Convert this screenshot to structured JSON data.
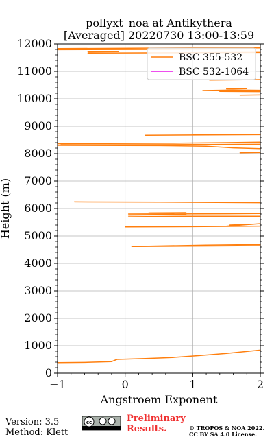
{
  "chart_data": {
    "type": "line",
    "title": "pollyxt_noa at Antikythera",
    "subtitle": "[Averaged] 20220730 13:00-13:59",
    "xlabel": "Angstroem Exponent",
    "ylabel": "Height (m)",
    "xlim": [
      -1,
      2
    ],
    "ylim": [
      0,
      12000
    ],
    "x_ticks": [
      -1,
      0,
      1,
      2
    ],
    "y_ticks": [
      0,
      1000,
      2000,
      3000,
      4000,
      5000,
      6000,
      7000,
      8000,
      9000,
      10000,
      11000,
      12000
    ],
    "grid": true,
    "legend_position": "upper-right",
    "series": [
      {
        "name": "BSC 355-532",
        "color": "#ff7f0e",
        "segments": [
          [
            [
              -1.0,
              380
            ],
            [
              -0.6,
              390
            ],
            [
              -0.2,
              420
            ],
            [
              -0.12,
              500
            ],
            [
              0.3,
              530
            ],
            [
              0.7,
              570
            ],
            [
              1.1,
              640
            ],
            [
              1.5,
              720
            ],
            [
              2.0,
              840
            ]
          ],
          [
            [
              0.1,
              4620
            ],
            [
              1.5,
              4640
            ],
            [
              2.0,
              4650
            ]
          ],
          [
            [
              0.1,
              4620
            ],
            [
              1.2,
              4670
            ],
            [
              2.0,
              4690
            ]
          ],
          [
            [
              0.0,
              5330
            ],
            [
              1.0,
              5340
            ],
            [
              2.0,
              5360
            ]
          ],
          [
            [
              0.0,
              5340
            ],
            [
              1.5,
              5360
            ],
            [
              2.0,
              5450
            ]
          ],
          [
            [
              1.55,
              5400
            ],
            [
              1.9,
              5430
            ]
          ],
          [
            [
              0.05,
              5700
            ],
            [
              1.0,
              5720
            ],
            [
              2.0,
              5720
            ]
          ],
          [
            [
              0.05,
              5760
            ],
            [
              0.9,
              5780
            ]
          ],
          [
            [
              0.05,
              5800
            ],
            [
              1.5,
              5810
            ],
            [
              2.0,
              5820
            ]
          ],
          [
            [
              0.35,
              5840
            ],
            [
              0.9,
              5850
            ]
          ],
          [
            [
              -0.75,
              6240
            ],
            [
              0.5,
              6230
            ],
            [
              2.0,
              6210
            ]
          ],
          [
            [
              1.7,
              8030
            ],
            [
              2.0,
              8040
            ]
          ],
          [
            [
              -1.0,
              8300
            ],
            [
              0.5,
              8290
            ],
            [
              1.2,
              8270
            ],
            [
              1.6,
              8210
            ],
            [
              2.0,
              8180
            ]
          ],
          [
            [
              -0.95,
              8320
            ],
            [
              1.0,
              8330
            ],
            [
              2.0,
              8340
            ]
          ],
          [
            [
              -1.0,
              8360
            ],
            [
              0.8,
              8380
            ],
            [
              1.5,
              8400
            ],
            [
              2.0,
              8420
            ]
          ],
          [
            [
              0.3,
              8670
            ],
            [
              1.2,
              8680
            ],
            [
              2.0,
              8690
            ]
          ],
          [
            [
              1.0,
              8700
            ],
            [
              2.0,
              8700
            ]
          ],
          [
            [
              1.7,
              10130
            ],
            [
              2.0,
              10140
            ]
          ],
          [
            [
              1.4,
              10270
            ],
            [
              2.0,
              10260
            ]
          ],
          [
            [
              1.15,
              10300
            ],
            [
              1.6,
              10320
            ],
            [
              2.0,
              10310
            ]
          ],
          [
            [
              1.5,
              10360
            ],
            [
              1.8,
              10370
            ]
          ],
          [
            [
              1.25,
              10680
            ],
            [
              2.0,
              10700
            ]
          ],
          [
            [
              -0.55,
              11670
            ],
            [
              1.0,
              11680
            ],
            [
              2.0,
              11690
            ]
          ],
          [
            [
              -0.55,
              11710
            ],
            [
              -0.1,
              11720
            ]
          ],
          [
            [
              -1.0,
              11790
            ],
            [
              0.5,
              11800
            ],
            [
              2.0,
              11820
            ]
          ],
          [
            [
              -1.0,
              11830
            ],
            [
              0.5,
              11850
            ],
            [
              2.0,
              11870
            ]
          ]
        ]
      },
      {
        "name": "BSC 532-1064",
        "color": "#e815e8",
        "segments": []
      }
    ]
  },
  "footer": {
    "version": "Version: 3.5",
    "method": "Method: Klett",
    "preliminary_line1": "Preliminary",
    "preliminary_line2": "Results.",
    "copyright_line1": "© TROPOS & NOA 2022.",
    "copyright_line2": "CC BY SA 4.0 License."
  }
}
